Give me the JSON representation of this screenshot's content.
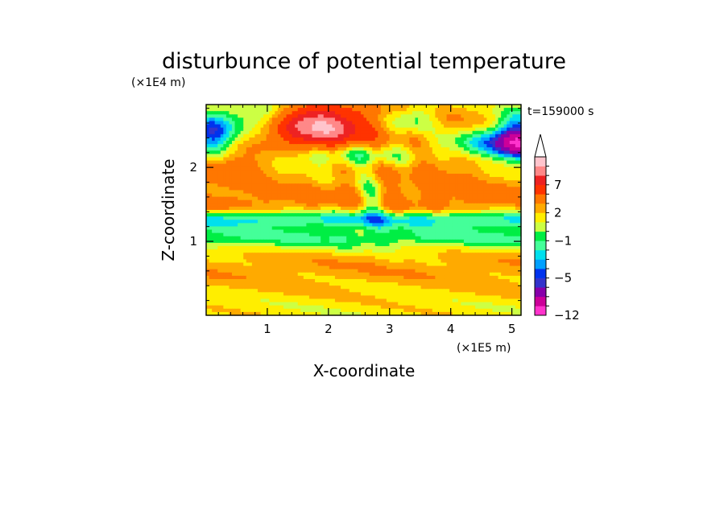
{
  "chart_data": {
    "type": "heatmap",
    "title": "disturbunce of potential temperature",
    "xlabel": "X-coordinate",
    "ylabel": "Z-coordinate",
    "x_unit": "(×1E5 m)",
    "y_unit": "(×1E4 m)",
    "time_label": "t=159000 s",
    "xlim": [
      0,
      5.15
    ],
    "ylim": [
      0,
      2.85
    ],
    "x_ticks": [
      "1",
      "2",
      "3",
      "4",
      "5"
    ],
    "x_tick_values": [
      1,
      2,
      3,
      4,
      5
    ],
    "y_ticks": [
      "1",
      "2"
    ],
    "y_tick_values": [
      1,
      2
    ],
    "colorbar": {
      "labels": [
        "7",
        "2",
        "−1",
        "−5",
        "−12"
      ],
      "label_values": [
        7,
        2,
        -1,
        -5,
        -12
      ],
      "levels": [
        -12,
        -10,
        -8,
        -6,
        -5,
        -4,
        -3,
        -2,
        -1,
        0,
        1,
        2,
        3,
        5,
        7,
        9,
        11
      ],
      "colors": [
        "#ff33cc",
        "#cc0099",
        "#8800aa",
        "#3333cc",
        "#0033ee",
        "#00a0ff",
        "#00e0ee",
        "#44ff99",
        "#00ee44",
        "#ccff44",
        "#ffee00",
        "#ffaa00",
        "#ff7700",
        "#ff3300",
        "#ee2222",
        "#ff8888",
        "#ffc4cc"
      ],
      "extend": "max"
    }
  }
}
